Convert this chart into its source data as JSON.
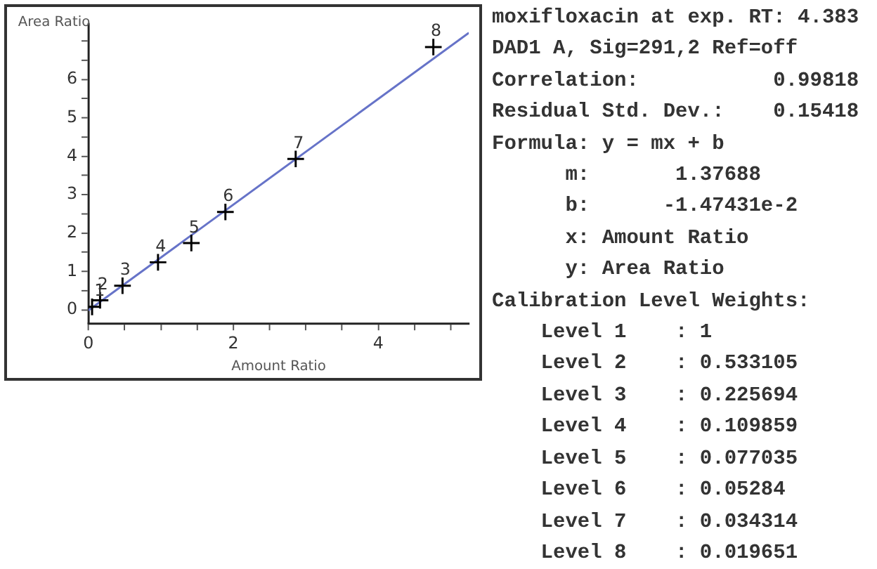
{
  "chart_data": {
    "type": "scatter",
    "xlabel": "Amount Ratio",
    "ylabel": "Area Ratio",
    "series": [
      {
        "type": "scatter",
        "marker": "cross",
        "color": "#000000",
        "x": [
          0.05,
          0.16,
          0.47,
          0.96,
          1.42,
          1.89,
          2.86,
          4.76
        ],
        "values": [
          0.08,
          0.25,
          0.63,
          1.24,
          1.74,
          2.55,
          3.93,
          6.84
        ]
      },
      {
        "type": "line",
        "marker": "none",
        "color": "#6673c8",
        "x": [
          0,
          5.25
        ],
        "values": [
          -0.01,
          7.21
        ]
      }
    ],
    "xlim": [
      0,
      5.25
    ],
    "xticks": [
      0,
      {
        "value": 0.5,
        "label": null
      },
      {
        "value": 1,
        "label": null
      },
      {
        "value": 1.5,
        "label": null
      },
      2,
      {
        "value": 2.5,
        "label": null
      },
      {
        "value": 3,
        "label": null
      },
      {
        "value": 3.5,
        "label": null
      },
      4,
      {
        "value": 4.5,
        "label": null
      },
      {
        "value": 5,
        "label": null
      }
    ],
    "ylim": [
      -0.35,
      7.45
    ],
    "yticks": [
      0,
      {
        "value": 0.5,
        "label": null
      },
      1,
      {
        "value": 1.5,
        "label": null
      },
      2,
      {
        "value": 2.5,
        "label": null
      },
      3,
      {
        "value": 3.5,
        "label": null
      },
      4,
      {
        "value": 4.5,
        "label": null
      },
      5,
      {
        "value": 5.5,
        "label": null
      },
      6,
      {
        "value": 6.5,
        "label": null
      },
      {
        "value": 7,
        "label": null
      }
    ],
    "grid": false,
    "legend": false,
    "annotations": [
      {
        "text": "1",
        "x": 0.05,
        "y": 0.08
      },
      {
        "text": "2",
        "x": 0.16,
        "y": 0.25
      },
      {
        "text": "3",
        "x": 0.47,
        "y": 0.63
      },
      {
        "text": "4",
        "x": 0.96,
        "y": 1.24
      },
      {
        "text": "5",
        "x": 1.42,
        "y": 1.74
      },
      {
        "text": "6",
        "x": 1.89,
        "y": 2.55
      },
      {
        "text": "7",
        "x": 2.86,
        "y": 3.93
      },
      {
        "text": "8",
        "x": 4.76,
        "y": 6.84
      },
      "moxifloxacin at exp. RT: 4.383",
      "DAD1 A, Sig=291,2 Ref=off",
      "Correlation:           0.99818",
      "Residual Std. Dev.:    0.15418",
      "Formula: y = mx + b",
      "      m:       1.37688",
      "      b:      -1.47431e-2",
      "      x: Amount Ratio",
      "      y: Area Ratio",
      "Calibration Level Weights:",
      "    Level 1    : 1",
      "    Level 2    : 0.533105",
      "    Level 3    : 0.225694",
      "    Level 4    : 0.109859",
      "    Level 5    : 0.077035",
      "    Level 6    : 0.05284",
      "    Level 7    : 0.034314",
      "    Level 8    : 0.019651"
    ]
  }
}
